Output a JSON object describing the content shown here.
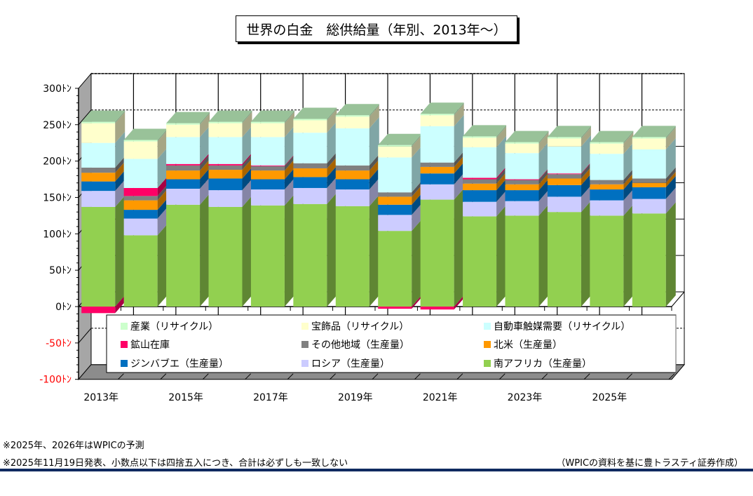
{
  "title": "世界の白金　総供給量（年別、2013年～）",
  "chart_data": {
    "type": "bar",
    "stacked": true,
    "three_d": true,
    "title": "世界の白金　総供給量（年別、2013年～）",
    "xlabel": "",
    "ylabel": "",
    "ylim": [
      -100,
      300
    ],
    "y_ticks": [
      {
        "value": 300,
        "label": "300ﾄﾝ",
        "negative": false
      },
      {
        "value": 250,
        "label": "250ﾄﾝ",
        "negative": false
      },
      {
        "value": 200,
        "label": "200ﾄﾝ",
        "negative": false
      },
      {
        "value": 150,
        "label": "150ﾄﾝ",
        "negative": false
      },
      {
        "value": 100,
        "label": "100ﾄﾝ",
        "negative": false
      },
      {
        "value": 50,
        "label": "50ﾄﾝ",
        "negative": false
      },
      {
        "value": 0,
        "label": "0ﾄﾝ",
        "negative": false
      },
      {
        "value": -50,
        "label": "-50ﾄﾝ",
        "negative": true
      },
      {
        "value": -100,
        "label": "-100ﾄﾝ",
        "negative": true
      }
    ],
    "categories": [
      "2013年",
      "2014年",
      "2015年",
      "2016年",
      "2017年",
      "2018年",
      "2019年",
      "2020年",
      "2021年",
      "2022年",
      "2023年",
      "2024年",
      "2025年",
      "2026年"
    ],
    "x_tick_labels": [
      "2013年",
      "2015年",
      "2017年",
      "2019年",
      "2021年",
      "2023年",
      "2025年"
    ],
    "grid": true,
    "legend_position": "inside-bottom",
    "series": [
      {
        "name": "南アフリカ（生産量）",
        "color": "#92d050",
        "side": "#5f8633",
        "values": [
          137,
          98,
          140,
          137,
          139,
          141,
          138,
          104,
          147,
          124,
          125,
          130,
          125,
          128
        ]
      },
      {
        "name": "ロシア（生産量）",
        "color": "#ccccff",
        "side": "#8585a6",
        "values": [
          22,
          23,
          22,
          23,
          22,
          22,
          23,
          22,
          21,
          20,
          20,
          21,
          21,
          20
        ]
      },
      {
        "name": "ジンバブエ（生産量）",
        "color": "#0070c0",
        "side": "#004a80",
        "values": [
          13,
          12,
          13,
          16,
          14,
          15,
          14,
          14,
          15,
          16,
          15,
          16,
          15,
          16
        ]
      },
      {
        "name": "北米（生産量）",
        "color": "#ff9900",
        "side": "#a86400",
        "values": [
          12,
          13,
          12,
          12,
          12,
          12,
          12,
          11,
          9,
          9,
          8,
          9,
          7,
          6
        ]
      },
      {
        "name": "その他地域（生産量）",
        "color": "#808080",
        "side": "#555555",
        "values": [
          7,
          6,
          7,
          6,
          6,
          7,
          7,
          6,
          6,
          6,
          6,
          6,
          6,
          6
        ]
      },
      {
        "name": "鉱山在庫",
        "color": "#ff0066",
        "side": "#a80044",
        "values": [
          -9,
          11,
          2,
          2,
          1,
          0,
          0,
          -3,
          -4,
          2,
          1,
          1,
          0,
          0
        ]
      },
      {
        "name": "自動車触媒需要（リサイクル）",
        "color": "#ccffff",
        "side": "#80a6a6",
        "values": [
          34,
          40,
          37,
          37,
          39,
          42,
          51,
          48,
          50,
          42,
          36,
          37,
          36,
          40
        ]
      },
      {
        "name": "宝飾品（リサイクル）",
        "color": "#ffffcc",
        "side": "#a6a685",
        "values": [
          27,
          24,
          17,
          19,
          19,
          17,
          16,
          15,
          15,
          13,
          13,
          11,
          14,
          15
        ]
      },
      {
        "name": "産業（リサイクル）",
        "color": "#ccffcc",
        "side": "#85a685",
        "values": [
          2,
          2,
          2,
          2,
          2,
          2,
          2,
          2,
          2,
          2,
          2,
          2,
          2,
          2
        ]
      }
    ],
    "legend_order": [
      8,
      7,
      6,
      5,
      4,
      3,
      2,
      1,
      0
    ],
    "top_face_color": "#99c299"
  },
  "notes": [
    "※2025年、2026年はWPICの予測",
    "※2025年11月19日発表、小数点以下は四捨五入につき、合計は必ずしも一致しない"
  ],
  "source": "（WPICの資料を基に豊トラスティ証券作成）"
}
